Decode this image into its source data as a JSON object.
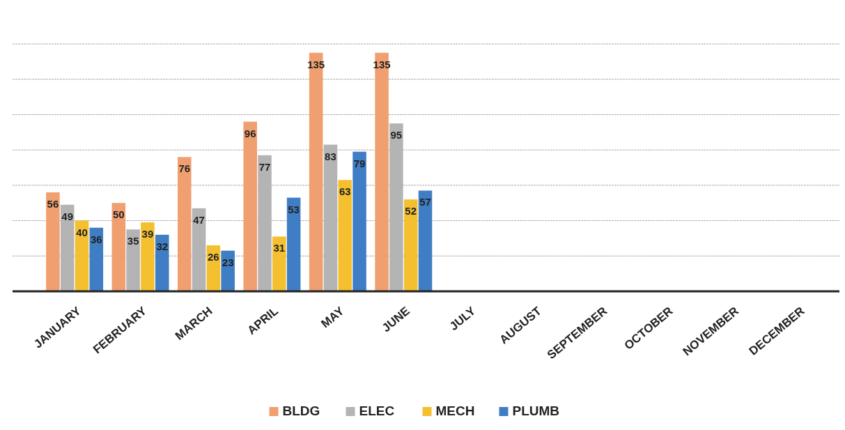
{
  "chart_data": {
    "type": "bar",
    "categories": [
      "JANUARY",
      "FEBRUARY",
      "MARCH",
      "APRIL",
      "MAY",
      "JUNE",
      "JULY",
      "AUGUST",
      "SEPTEMBER",
      "OCTOBER",
      "NOVEMBER",
      "DECEMBER"
    ],
    "series": [
      {
        "name": "BLDG",
        "color": "#f0a070",
        "values": [
          56,
          50,
          76,
          96,
          135,
          135,
          null,
          null,
          null,
          null,
          null,
          null
        ]
      },
      {
        "name": "ELEC",
        "color": "#b4b4b4",
        "values": [
          49,
          35,
          47,
          77,
          83,
          95,
          null,
          null,
          null,
          null,
          null,
          null
        ]
      },
      {
        "name": "MECH",
        "color": "#f4c030",
        "values": [
          40,
          39,
          26,
          31,
          63,
          52,
          null,
          null,
          null,
          null,
          null,
          null
        ]
      },
      {
        "name": "PLUMB",
        "color": "#3f7ec4",
        "values": [
          36,
          32,
          23,
          53,
          79,
          57,
          null,
          null,
          null,
          null,
          null,
          null
        ]
      }
    ],
    "ylim": [
      0,
      140
    ],
    "yticks": [
      {
        "value": 20,
        "label": null
      },
      {
        "value": 40,
        "label": null
      },
      {
        "value": 60,
        "label": null
      },
      {
        "value": 80,
        "label": null
      },
      {
        "value": 100,
        "label": null
      },
      {
        "value": 120,
        "label": null
      },
      {
        "value": 140,
        "label": null
      }
    ],
    "grid": "y",
    "tick_labels": "x",
    "data_labels": true,
    "legend": "bottom"
  }
}
